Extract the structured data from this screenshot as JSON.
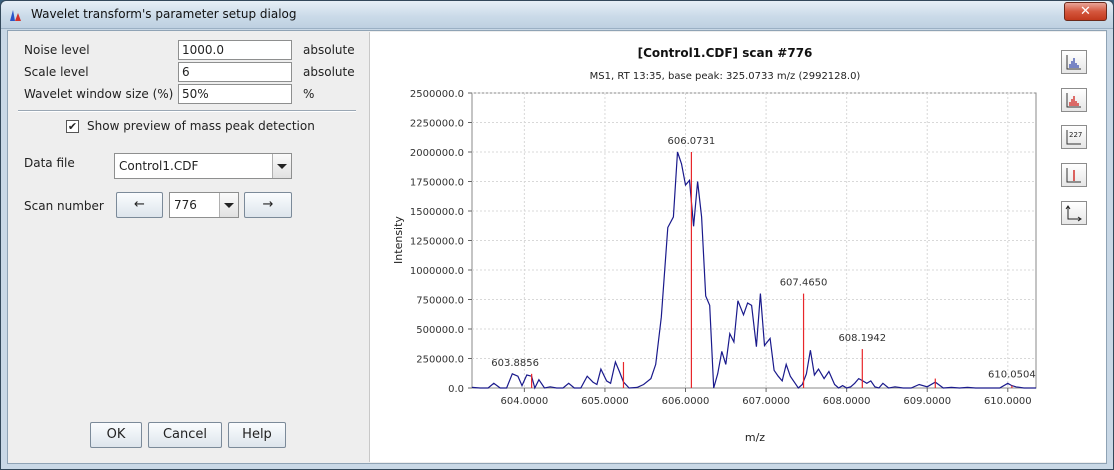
{
  "window": {
    "title": "Wavelet transform's parameter setup dialog",
    "close_label": "✕"
  },
  "params": {
    "noise": {
      "label": "Noise level",
      "value": "1000.0",
      "unit": "absolute"
    },
    "scale": {
      "label": "Scale level",
      "value": "6",
      "unit": "absolute"
    },
    "window": {
      "label": "Wavelet window size (%)",
      "value": "50%",
      "unit": "%"
    }
  },
  "preview": {
    "label": "Show preview of mass peak detection",
    "checked": true,
    "check_glyph": "✔"
  },
  "data_file": {
    "label": "Data file",
    "value": "Control1.CDF"
  },
  "scan": {
    "label": "Scan number",
    "value": "776",
    "prev_label": "←",
    "next_label": "→"
  },
  "buttons": {
    "ok": "OK",
    "cancel": "Cancel",
    "help": "Help"
  },
  "toolbar": {
    "icons": [
      "continuous-mode-icon",
      "data-points-icon",
      "annotations-icon",
      "peak-picking-icon",
      "axes-icon"
    ],
    "annotations_glyph": "227"
  },
  "colors": {
    "profile": "#1a1a8c",
    "peaks": "#e8262a",
    "grid": "#d8d8d8"
  },
  "chart_data": {
    "type": "line",
    "title": "[Control1.CDF] scan #776",
    "subtitle": "MS1, RT 13:35, base peak: 325.0733 m/z (2992128.0)",
    "xlabel": "m/z",
    "ylabel": "Intensity",
    "xlim": [
      603.35,
      610.35
    ],
    "ylim": [
      0,
      2500000
    ],
    "x_ticks": [
      "604.0000",
      "605.0000",
      "606.0000",
      "607.0000",
      "608.0000",
      "609.0000",
      "610.0000"
    ],
    "y_ticks": [
      "0.0",
      "250000.0",
      "500000.0",
      "750000.0",
      "1000000.0",
      "1250000.0",
      "1500000.0",
      "1750000.0",
      "2000000.0",
      "2250000.0",
      "2500000.0"
    ],
    "grid": true,
    "series": [
      {
        "type": "line",
        "x": [
          603.35,
          603.45,
          603.55,
          603.62,
          603.7,
          603.78,
          603.85,
          603.92,
          603.97,
          604.03,
          604.09,
          604.13,
          604.18,
          604.25,
          604.32,
          604.4,
          604.48,
          604.55,
          604.62,
          604.7,
          604.78,
          604.85,
          604.9,
          604.95,
          605.02,
          605.07,
          605.13,
          605.18,
          605.23,
          605.3,
          605.4,
          605.48,
          605.57,
          605.63,
          605.7,
          605.78,
          605.85,
          605.9,
          605.95,
          606.0,
          606.05,
          606.1,
          606.15,
          606.2,
          606.25,
          606.3,
          606.35,
          606.4,
          606.45,
          606.5,
          606.55,
          606.6,
          606.65,
          606.72,
          606.77,
          606.82,
          606.88,
          606.93,
          606.98,
          607.05,
          607.1,
          607.15,
          607.2,
          607.25,
          607.3,
          607.35,
          607.4,
          607.45,
          607.5,
          607.55,
          607.6,
          607.65,
          607.72,
          607.78,
          607.85,
          607.9,
          607.95,
          608.0,
          608.05,
          608.1,
          608.15,
          608.2,
          608.25,
          608.3,
          608.35,
          608.4,
          608.45,
          608.52,
          608.6,
          608.7,
          608.8,
          608.9,
          609.0,
          609.1,
          609.2,
          609.3,
          609.4,
          609.5,
          609.6,
          609.7,
          609.8,
          609.9,
          610.0,
          610.05,
          610.1,
          610.2,
          610.35
        ],
        "y": [
          5000,
          0,
          0,
          40000,
          0,
          0,
          120000,
          100000,
          20000,
          110000,
          100000,
          0,
          70000,
          0,
          10000,
          0,
          0,
          40000,
          0,
          0,
          100000,
          50000,
          30000,
          160000,
          60000,
          40000,
          220000,
          140000,
          50000,
          0,
          5000,
          30000,
          80000,
          200000,
          600000,
          1360000,
          1450000,
          2000000,
          1900000,
          1720000,
          1760000,
          1370000,
          1750000,
          1450000,
          780000,
          700000,
          0,
          120000,
          310000,
          200000,
          460000,
          390000,
          740000,
          620000,
          720000,
          700000,
          350000,
          800000,
          360000,
          420000,
          150000,
          100000,
          60000,
          200000,
          100000,
          50000,
          0,
          30000,
          120000,
          320000,
          110000,
          160000,
          80000,
          140000,
          30000,
          0,
          20000,
          0,
          10000,
          40000,
          80000,
          60000,
          40000,
          60000,
          10000,
          0,
          40000,
          0,
          10000,
          0,
          0,
          30000,
          10000,
          50000,
          0,
          5000,
          0,
          5000,
          0,
          0,
          0,
          0,
          40000,
          20000,
          10000,
          0,
          0
        ]
      },
      {
        "type": "stem",
        "x": [
          604.09,
          605.23,
          606.0731,
          607.465,
          608.1942,
          609.1,
          610.0504
        ],
        "y": [
          120000,
          220000,
          2000000,
          800000,
          330000,
          80000,
          20000
        ]
      }
    ],
    "annotations": [
      {
        "x": 603.8856,
        "y": 120000,
        "text": "603.8856"
      },
      {
        "x": 606.0731,
        "y": 2000000,
        "text": "606.0731"
      },
      {
        "x": 607.465,
        "y": 800000,
        "text": "607.4650"
      },
      {
        "x": 608.1942,
        "y": 330000,
        "text": "608.1942"
      },
      {
        "x": 610.0504,
        "y": 20000,
        "text": "610.0504"
      }
    ]
  }
}
